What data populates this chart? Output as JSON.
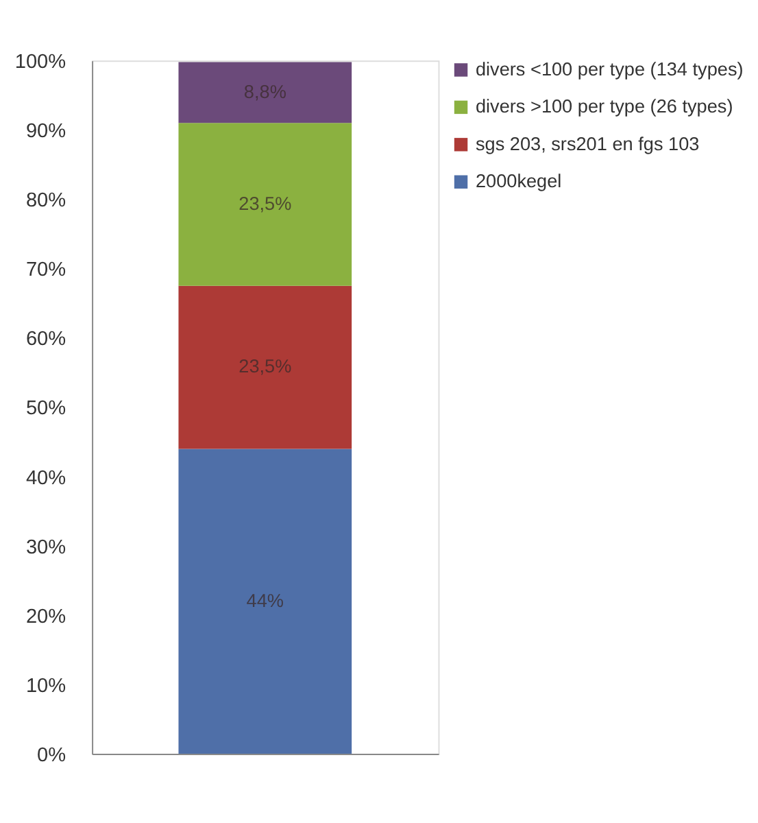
{
  "chart_data": {
    "type": "bar",
    "stacked": true,
    "categories": [
      null
    ],
    "series": [
      {
        "name": "2000kegel",
        "color": "#4f6fa8",
        "values": [
          44
        ],
        "value_labels": [
          "44%"
        ]
      },
      {
        "name": "sgs 203, srs201 en fgs 103",
        "color": "#ad3a36",
        "values": [
          23.5
        ],
        "value_labels": [
          "23,5%"
        ]
      },
      {
        "name": "divers >100 per type (26 types)",
        "color": "#8bb140",
        "values": [
          23.5
        ],
        "value_labels": [
          "23,5%"
        ]
      },
      {
        "name": "divers <100 per type (134 types)",
        "color": "#6b4a7a",
        "values": [
          8.8
        ],
        "value_labels": [
          "8,8%"
        ]
      }
    ],
    "ylim": [
      0,
      100
    ],
    "yticks": [
      {
        "value": 0,
        "label": "0%"
      },
      {
        "value": 10,
        "label": "10%"
      },
      {
        "value": 20,
        "label": "20%"
      },
      {
        "value": 30,
        "label": "30%"
      },
      {
        "value": 40,
        "label": "40%"
      },
      {
        "value": 50,
        "label": "50%"
      },
      {
        "value": 60,
        "label": "60%"
      },
      {
        "value": 70,
        "label": "70%"
      },
      {
        "value": 80,
        "label": "80%"
      },
      {
        "value": 90,
        "label": "90%"
      },
      {
        "value": 100,
        "label": "100%"
      }
    ],
    "grid": false,
    "legend": "right",
    "tick_labels": "y"
  }
}
